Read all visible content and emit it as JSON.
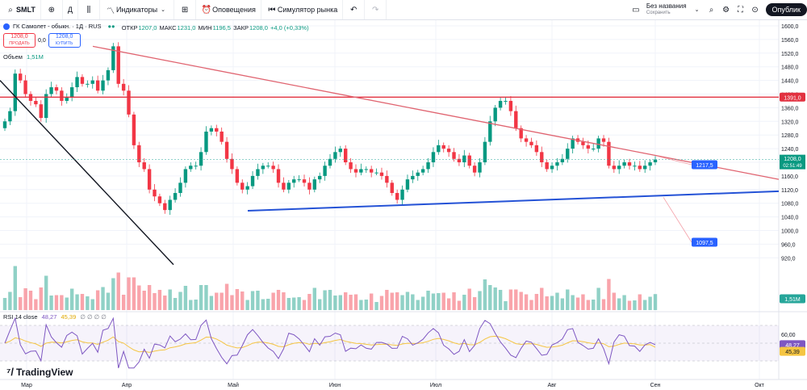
{
  "toolbar": {
    "symbol": "SMLT",
    "interval": "Д",
    "indicators_label": "Индикаторы",
    "alerts_label": "Оповещения",
    "replay_label": "Симулятор рынка",
    "layout_name": "Без названия",
    "layout_status": "Сохранить",
    "publish_label": "Опублик"
  },
  "legend": {
    "title": "ГК Самолет - обыкн. · 1Д · RUS",
    "open_label": "ОТКР",
    "open": "1207,0",
    "high_label": "МАКС",
    "high": "1231,0",
    "low_label": "МИН",
    "low": "1196,5",
    "close_label": "ЗАКР",
    "close": "1208,0",
    "change": "+4,0 (+0,33%)",
    "sell_price": "1208,0",
    "sell_label": "ПРОДАТЬ",
    "spread": "0,0",
    "buy_price": "1208,0",
    "buy_label": "КУПИТЬ",
    "volume_label": "Объем",
    "volume_value": "1,51M"
  },
  "rsi_legend": {
    "label": "RSI 14 close",
    "rsi": "48,27",
    "ma": "45,39",
    "extras": "∅ ∅ ∅ ∅"
  },
  "brand": "TradingView",
  "colors": {
    "up": "#089981",
    "down": "#f23645",
    "trend_down": "#e06470",
    "support": "#2452d6",
    "resistance": "#e23140",
    "rsi": "#7e57c2",
    "rsi_ma": "#f5c542"
  },
  "chart_data": {
    "type": "candlestick",
    "price_axis": {
      "ticks": [
        "1600,0",
        "1560,0",
        "1520,0",
        "1480,0",
        "1440,0",
        "1400,0",
        "1360,0",
        "1320,0",
        "1280,0",
        "1240,0",
        "1200,0",
        "1160,0",
        "1120,0",
        "1080,0",
        "1040,0",
        "1000,0",
        "960,0",
        "920,0"
      ],
      "range": [
        900,
        1610
      ]
    },
    "time_axis": {
      "labels": [
        "Мар",
        "Апр",
        "Май",
        "Июн",
        "Июл",
        "Авг",
        "Сен",
        "Окт"
      ]
    },
    "last_price": {
      "value": "1208,0",
      "countdown": "02:51:49"
    },
    "volume_last": "1,51M",
    "annotations": [
      {
        "type": "horizontal",
        "label": "1391,0",
        "value": 1391.0
      },
      {
        "type": "callout",
        "label": "1217,5",
        "value": 1217.5
      },
      {
        "type": "callout",
        "label": "1097,5",
        "value": 1097.5
      }
    ],
    "trendlines": [
      {
        "name": "descending-resistance",
        "from": {
          "time": "Мар",
          "price": 1540
        },
        "to": {
          "time": "Окт",
          "price": 1150
        }
      },
      {
        "name": "ascending-support",
        "from": {
          "time": "Май",
          "price": 1058
        },
        "to": {
          "time": "Окт",
          "price": 1115
        }
      },
      {
        "name": "steep-downtrend",
        "from": {
          "time": "Мар",
          "price": 1440
        },
        "to": {
          "time": "Апр",
          "price": 900
        }
      }
    ],
    "candles_close": [
      1320,
      1350,
      1460,
      1440,
      1400,
      1380,
      1370,
      1330,
      1400,
      1420,
      1410,
      1380,
      1390,
      1420,
      1450,
      1430,
      1430,
      1440,
      1410,
      1440,
      1470,
      1540,
      1430,
      1410,
      1340,
      1250,
      1200,
      1180,
      1120,
      1100,
      1080,
      1060,
      1090,
      1110,
      1140,
      1180,
      1190,
      1190,
      1230,
      1290,
      1300,
      1290,
      1260,
      1210,
      1180,
      1140,
      1120,
      1130,
      1160,
      1180,
      1190,
      1190,
      1180,
      1140,
      1120,
      1140,
      1150,
      1150,
      1140,
      1120,
      1150,
      1160,
      1190,
      1210,
      1230,
      1240,
      1200,
      1180,
      1170,
      1180,
      1180,
      1170,
      1170,
      1160,
      1140,
      1110,
      1090,
      1120,
      1150,
      1160,
      1170,
      1180,
      1200,
      1230,
      1250,
      1240,
      1230,
      1210,
      1200,
      1220,
      1190,
      1170,
      1200,
      1260,
      1320,
      1360,
      1380,
      1380,
      1350,
      1300,
      1270,
      1260,
      1250,
      1230,
      1200,
      1180,
      1190,
      1200,
      1210,
      1240,
      1270,
      1260,
      1250,
      1240,
      1240,
      1270,
      1260,
      1190,
      1180,
      1190,
      1200,
      1190,
      1190,
      1180,
      1190,
      1200,
      1208
    ],
    "rsi": {
      "last": 48.27,
      "ma_last": 45.39,
      "levels": [
        70,
        50,
        30
      ],
      "ticks": [
        "60,00"
      ]
    }
  }
}
